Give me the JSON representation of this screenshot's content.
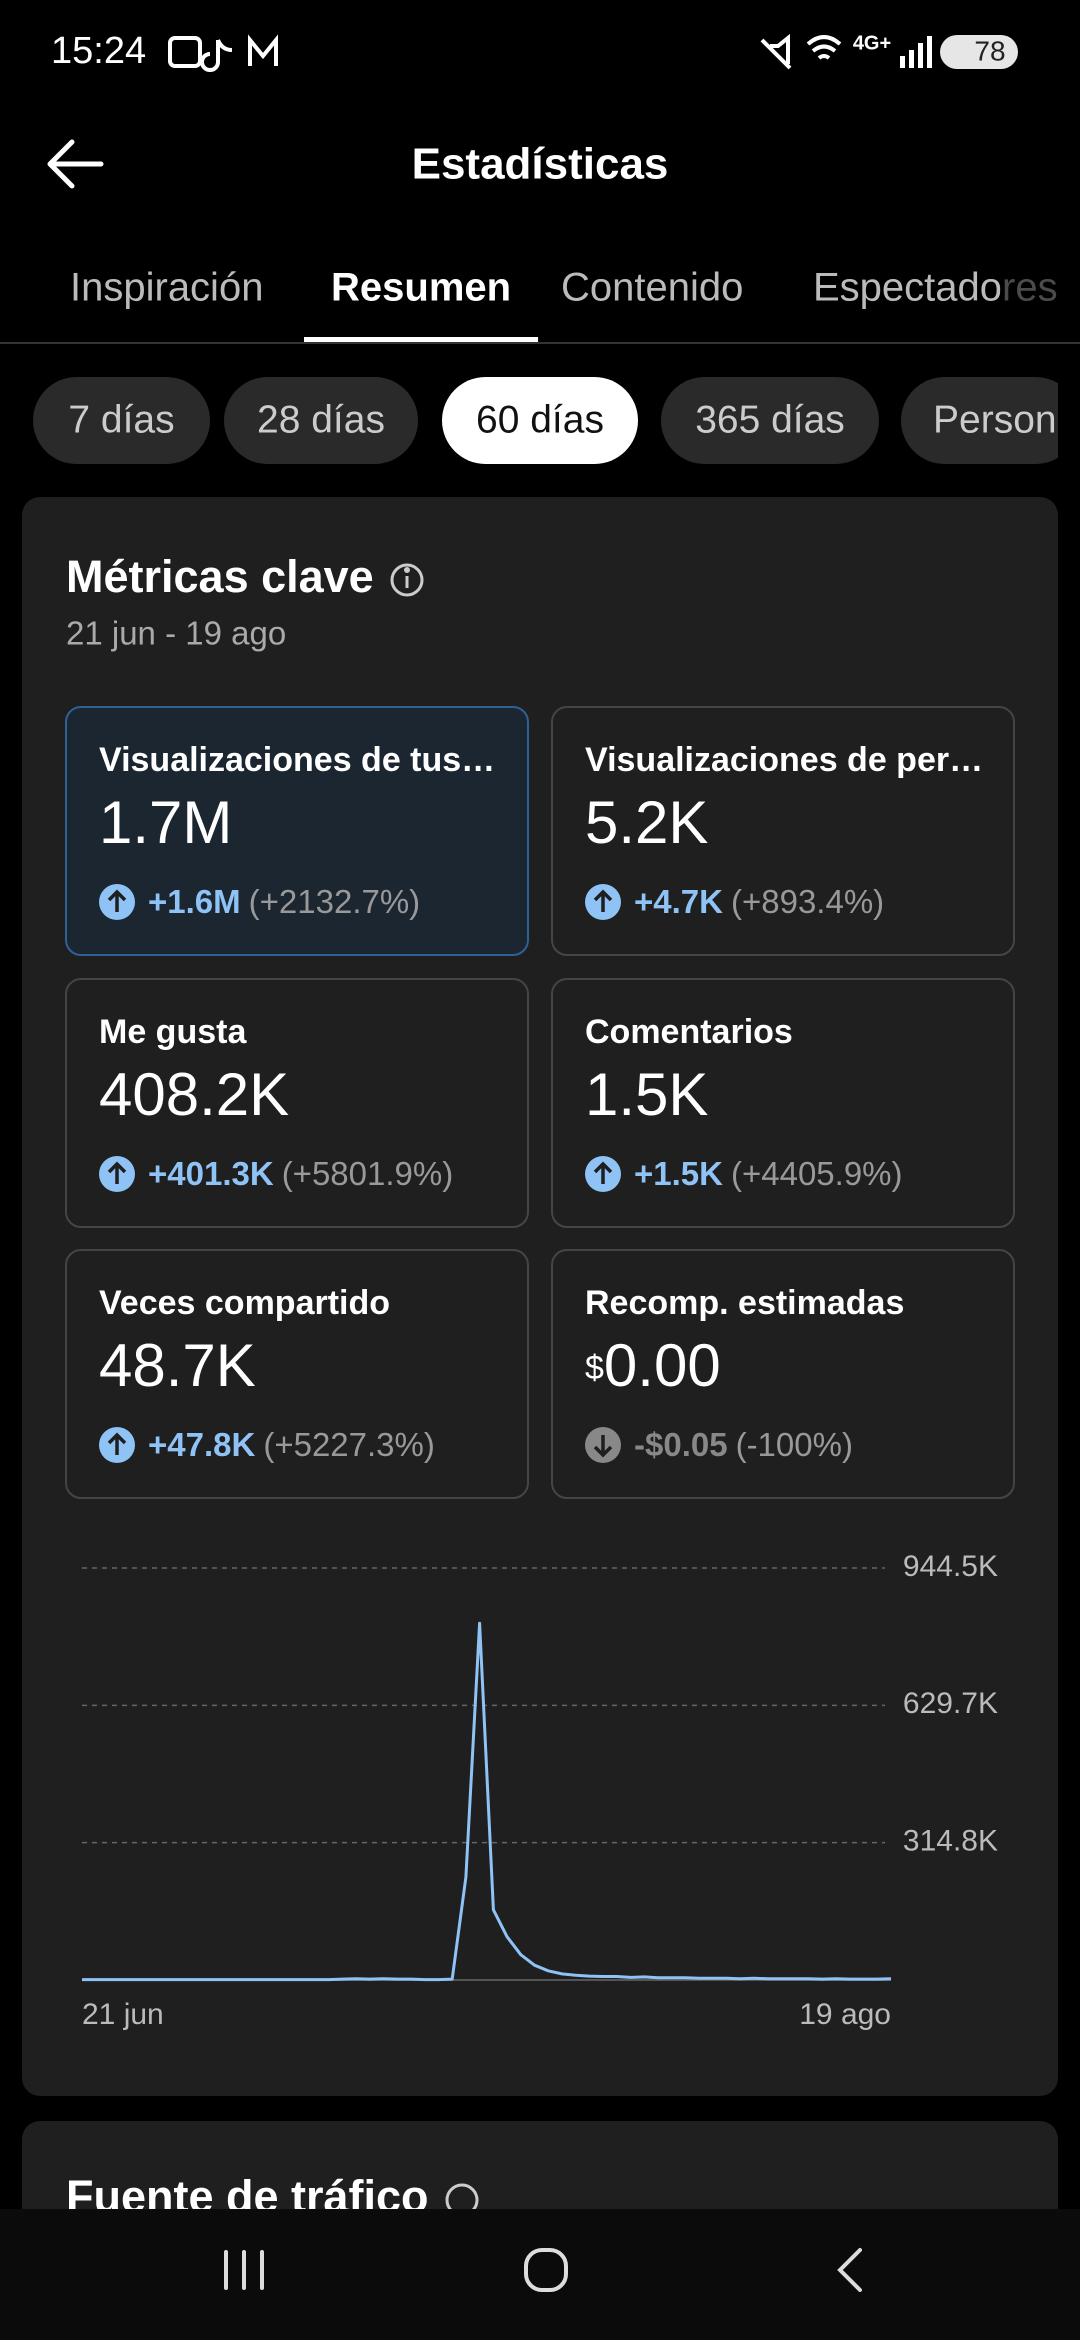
{
  "status_bar": {
    "time": "15:24",
    "network": "4G+",
    "battery": "78"
  },
  "header": {
    "title": "Estadísticas"
  },
  "tabs": [
    {
      "label": "Inspiración",
      "selected": false
    },
    {
      "label": "Resumen",
      "selected": true
    },
    {
      "label": "Contenido",
      "selected": false
    },
    {
      "label": "Espectadores",
      "selected": false
    }
  ],
  "periods": [
    {
      "label": "7 días",
      "selected": false
    },
    {
      "label": "28 días",
      "selected": false
    },
    {
      "label": "60 días",
      "selected": true
    },
    {
      "label": "365 días",
      "selected": false
    },
    {
      "label": "Person",
      "selected": false
    }
  ],
  "metrics": {
    "title": "Métricas clave",
    "date_range": "21 jun - 19 ago",
    "cards": [
      {
        "label": "Visualizaciones de tus…",
        "value": "1.7M",
        "change": "+1.6M",
        "change_pct": "(+2132.7%)",
        "trend": "up",
        "highlighted": true
      },
      {
        "label": "Visualizaciones de per…",
        "value": "5.2K",
        "change": "+4.7K",
        "change_pct": "(+893.4%)",
        "trend": "up",
        "highlighted": false
      },
      {
        "label": "Me gusta",
        "value": "408.2K",
        "change": "+401.3K",
        "change_pct": "(+5801.9%)",
        "trend": "up",
        "highlighted": false
      },
      {
        "label": "Comentarios",
        "value": "1.5K",
        "change": "+1.5K",
        "change_pct": "(+4405.9%)",
        "trend": "up",
        "highlighted": false
      },
      {
        "label": "Veces compartido",
        "value": "48.7K",
        "change": "+47.8K",
        "change_pct": "(+5227.3%)",
        "trend": "up",
        "highlighted": false
      },
      {
        "label": "Recomp. estimadas",
        "currency": "$",
        "value": "0.00",
        "change": "-$0.05",
        "change_pct": "(-100%)",
        "trend": "down",
        "highlighted": false
      }
    ]
  },
  "chart_data": {
    "type": "line",
    "color": "#8fc3f5",
    "grid": true,
    "categories": [
      "21 jun",
      null,
      null,
      null,
      null,
      null,
      null,
      null,
      null,
      null,
      null,
      null,
      null,
      null,
      null,
      null,
      null,
      null,
      null,
      null,
      null,
      null,
      null,
      null,
      null,
      null,
      null,
      null,
      null,
      null,
      null,
      null,
      null,
      null,
      null,
      null,
      null,
      null,
      null,
      null,
      null,
      null,
      null,
      null,
      null,
      null,
      null,
      null,
      null,
      null,
      null,
      null,
      null,
      null,
      null,
      null,
      null,
      null,
      null,
      "19 ago"
    ],
    "values": [
      1000,
      1000,
      1000,
      1000,
      1000,
      1000,
      1000,
      1000,
      1000,
      1000,
      1000,
      1000,
      1000,
      1000,
      1000,
      1000,
      1000,
      1000,
      1000,
      2000,
      3000,
      2000,
      3000,
      2000,
      2000,
      1000,
      1000,
      2000,
      236000,
      818000,
      161000,
      99000,
      58000,
      34000,
      21000,
      14000,
      11000,
      9000,
      8000,
      8000,
      6000,
      7000,
      5000,
      5000,
      5000,
      4000,
      4000,
      4000,
      3000,
      4000,
      3000,
      3000,
      3000,
      3000,
      2000,
      3000,
      2000,
      2000,
      2000,
      3000
    ],
    "ylim": [
      0,
      944500
    ],
    "yticks": [
      {
        "value": 314800,
        "label": "314.8K"
      },
      {
        "value": 629700,
        "label": "629.7K"
      },
      {
        "value": 944500,
        "label": "944.5K"
      }
    ]
  },
  "next_section": {
    "title": "Fuente de tráfico"
  }
}
